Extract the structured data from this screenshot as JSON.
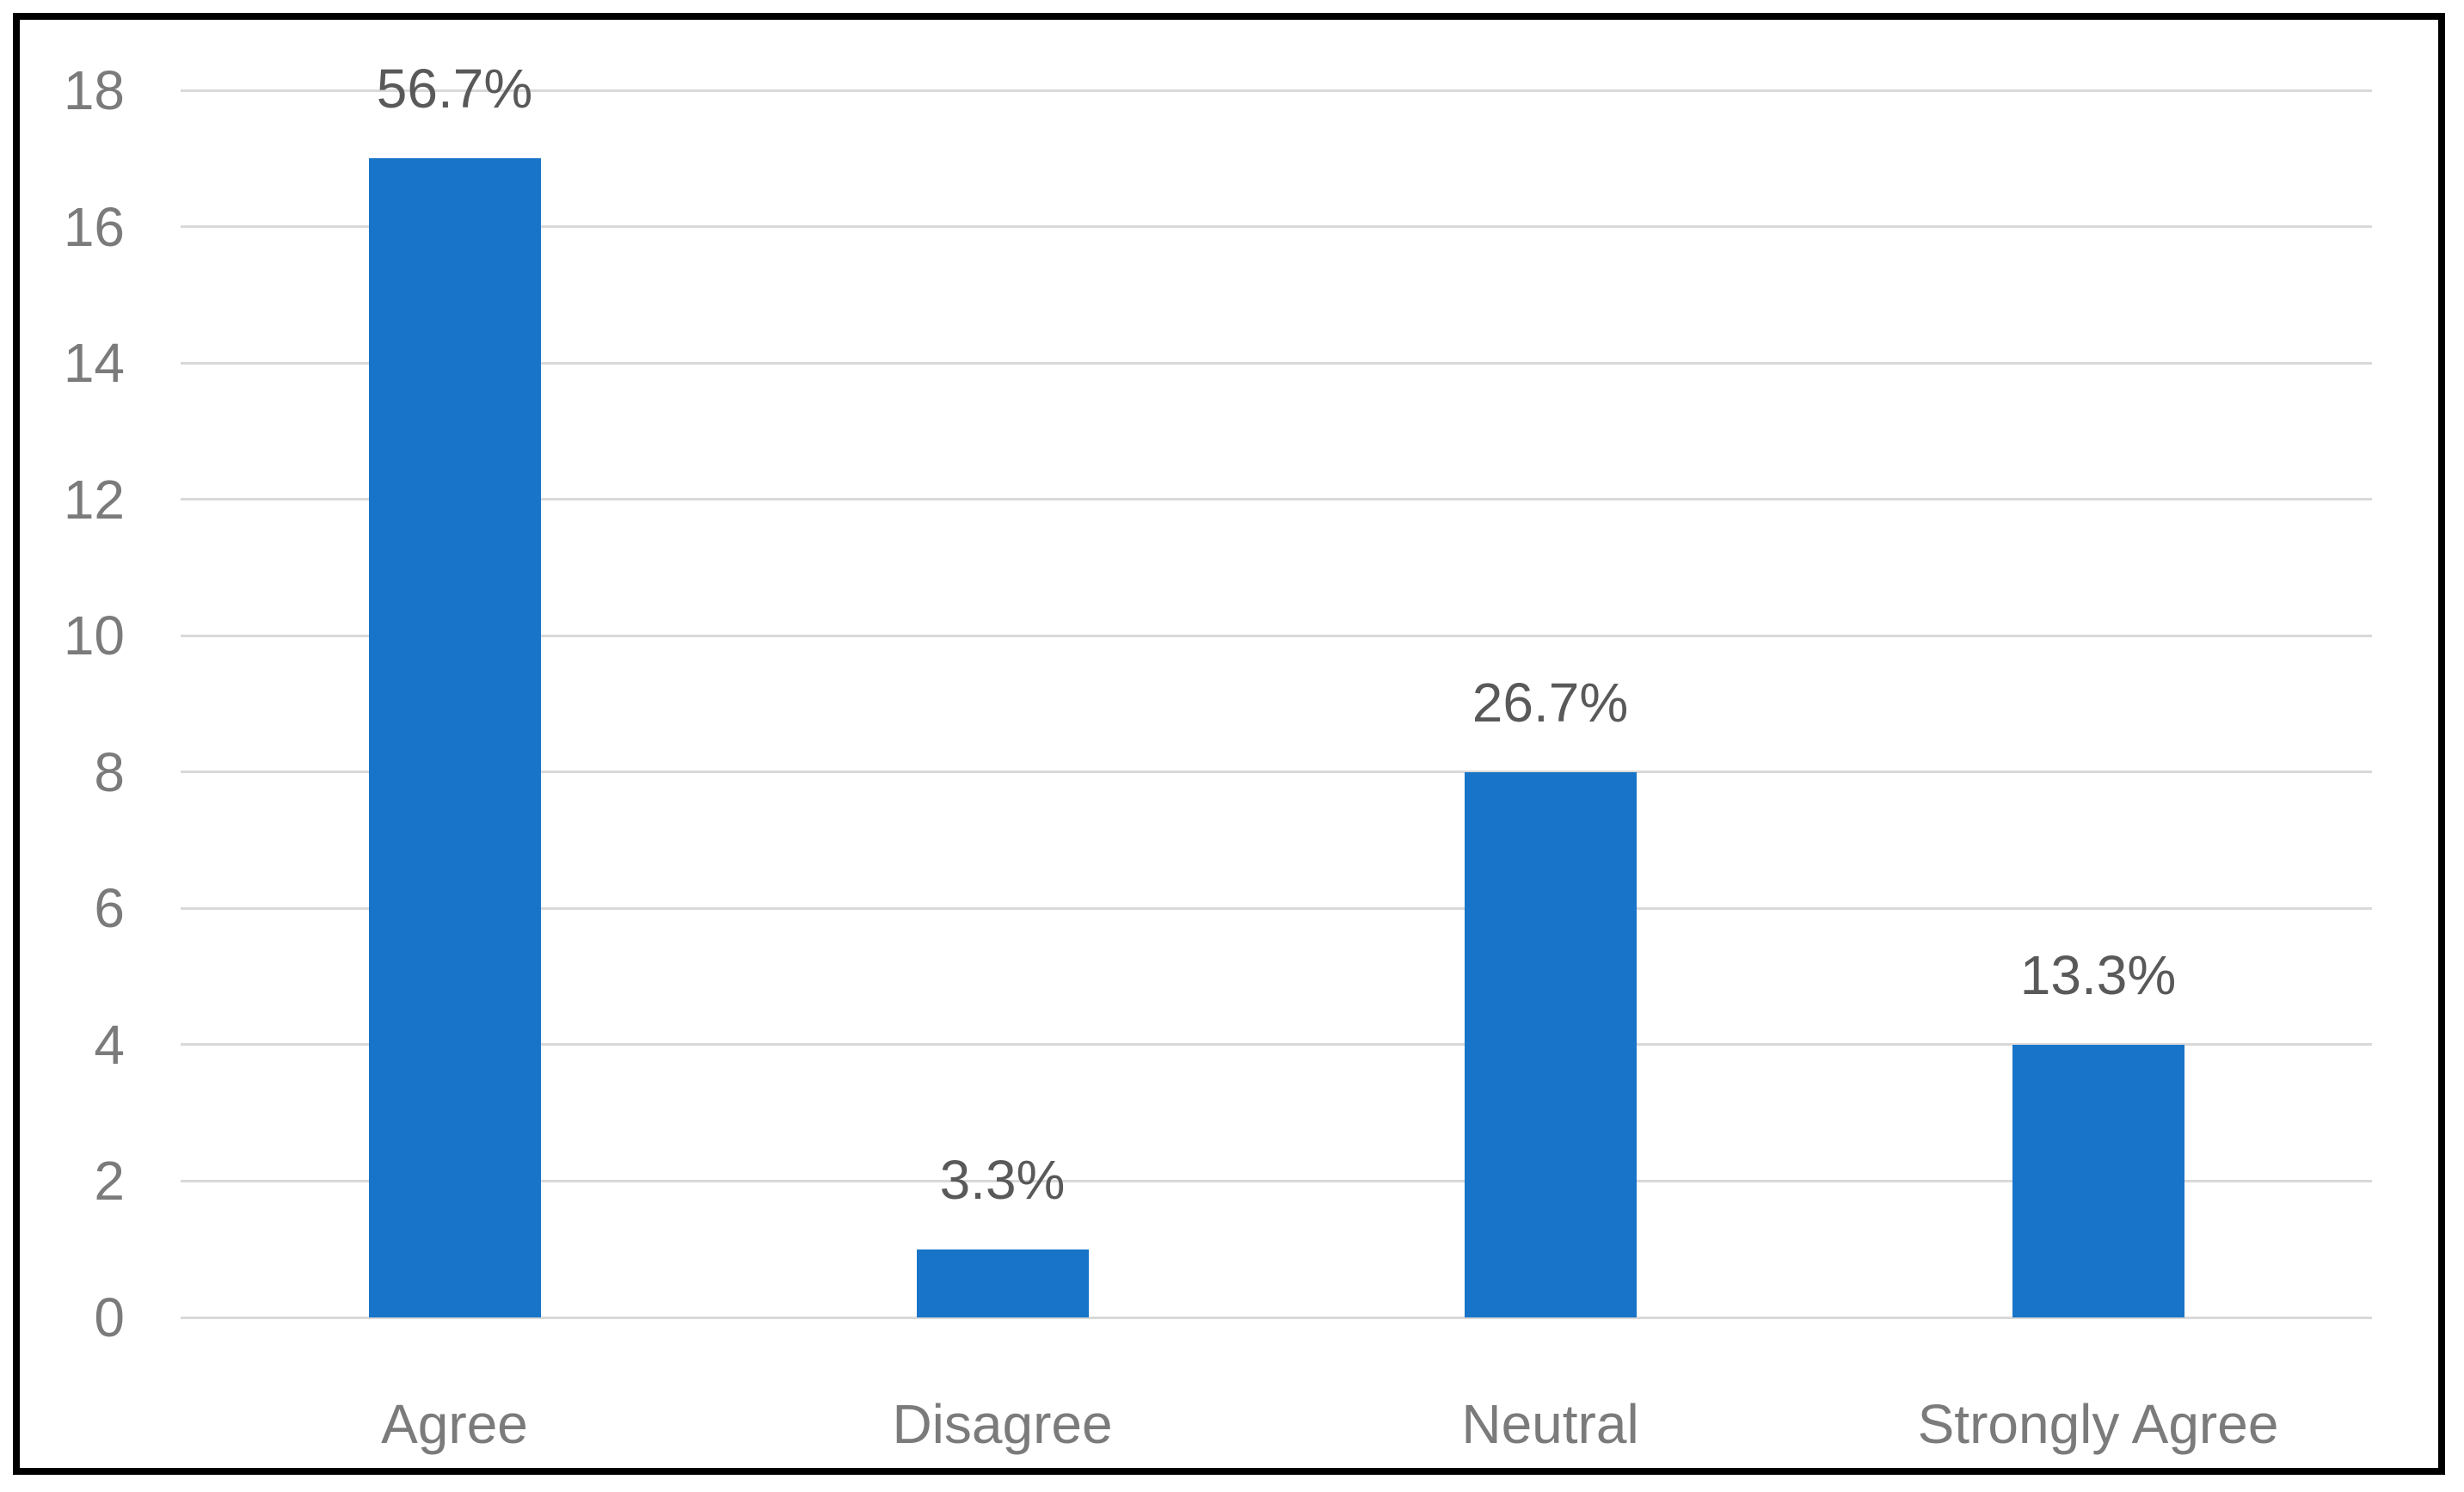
{
  "chart_data": {
    "type": "bar",
    "categories": [
      "Agree",
      "Disagree",
      "Neutral",
      "Strongly Agree"
    ],
    "values": [
      17,
      1,
      8,
      4
    ],
    "data_labels": [
      "56.7%",
      "3.3%",
      "26.7%",
      "13.3%"
    ],
    "series_name": "",
    "title": "",
    "xlabel": "",
    "ylabel": "",
    "ylim": [
      0,
      18
    ],
    "yticks": [
      0,
      2,
      4,
      6,
      8,
      10,
      12,
      14,
      16,
      18
    ],
    "grid": "horizontal",
    "legend": "none",
    "colors": {
      "bar_fill": "#1874C8",
      "gridline": "#D9D9D9",
      "axis_tick_label": "#7B7B7B",
      "category_label": "#7B7B7B",
      "data_label": "#595959",
      "frame_border": "#000000",
      "background": "#FFFFFF"
    }
  }
}
